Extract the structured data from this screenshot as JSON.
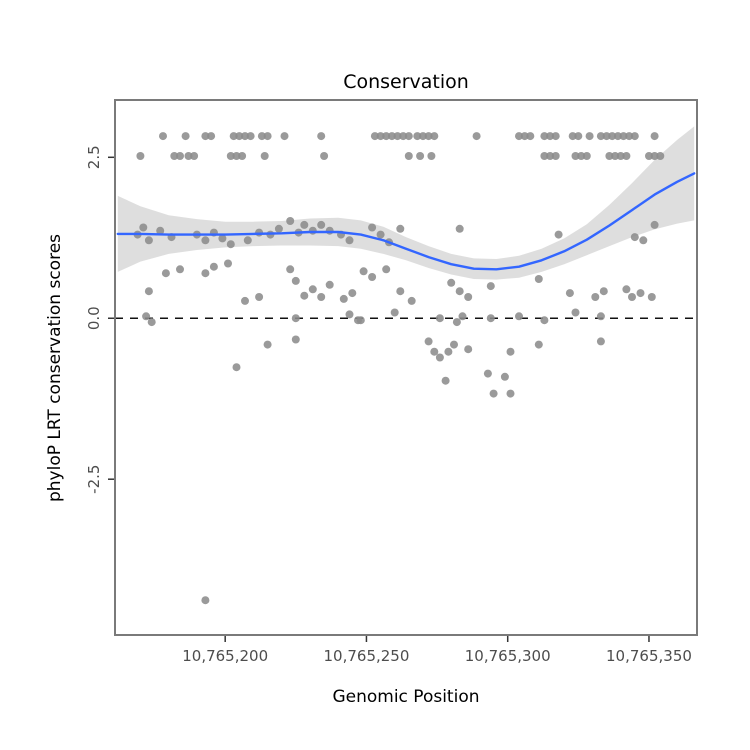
{
  "figure": {
    "background": "#ffffff"
  },
  "chart_data": {
    "type": "scatter",
    "title": "Conservation",
    "xlabel": "Genomic Position",
    "ylabel": "phyloP LRT conservation scores",
    "xlim": [
      10765161,
      10765367
    ],
    "ylim": [
      -4.92,
      3.39
    ],
    "grid": false,
    "legend": "none",
    "xticks": [
      {
        "value": 10765200,
        "label": "10,765,200"
      },
      {
        "value": 10765250,
        "label": "10,765,250"
      },
      {
        "value": 10765300,
        "label": "10,765,300"
      },
      {
        "value": 10765350,
        "label": "10,765,350"
      }
    ],
    "yticks": [
      {
        "value": 2.5,
        "label": "2.5"
      },
      {
        "value": 0.0,
        "label": "0.0"
      },
      {
        "value": -2.5,
        "label": "-2.5"
      }
    ],
    "reference_line_y": 0,
    "colors": {
      "point": "#8c8c8c",
      "smooth_line": "#3366FF",
      "ribbon": "#a8a8a8",
      "panel_border": "#7a7a7a",
      "dashed_line": "#111111",
      "panel_bg": "#ffffff"
    },
    "points": [
      [
        10765178,
        2.83
      ],
      [
        10765186,
        2.83
      ],
      [
        10765193,
        2.83
      ],
      [
        10765195,
        2.83
      ],
      [
        10765203,
        2.83
      ],
      [
        10765205,
        2.83
      ],
      [
        10765207,
        2.83
      ],
      [
        10765209,
        2.83
      ],
      [
        10765213,
        2.83
      ],
      [
        10765215,
        2.83
      ],
      [
        10765221,
        2.83
      ],
      [
        10765234,
        2.83
      ],
      [
        10765253,
        2.83
      ],
      [
        10765255,
        2.83
      ],
      [
        10765257,
        2.83
      ],
      [
        10765259,
        2.83
      ],
      [
        10765261,
        2.83
      ],
      [
        10765263,
        2.83
      ],
      [
        10765265,
        2.83
      ],
      [
        10765268,
        2.83
      ],
      [
        10765270,
        2.83
      ],
      [
        10765272,
        2.83
      ],
      [
        10765274,
        2.83
      ],
      [
        10765289,
        2.83
      ],
      [
        10765304,
        2.83
      ],
      [
        10765306,
        2.83
      ],
      [
        10765308,
        2.83
      ],
      [
        10765313,
        2.83
      ],
      [
        10765315,
        2.83
      ],
      [
        10765317,
        2.83
      ],
      [
        10765323,
        2.83
      ],
      [
        10765325,
        2.83
      ],
      [
        10765329,
        2.83
      ],
      [
        10765333,
        2.83
      ],
      [
        10765335,
        2.83
      ],
      [
        10765337,
        2.83
      ],
      [
        10765339,
        2.83
      ],
      [
        10765341,
        2.83
      ],
      [
        10765343,
        2.83
      ],
      [
        10765345,
        2.83
      ],
      [
        10765352,
        2.83
      ],
      [
        10765170,
        2.52
      ],
      [
        10765182,
        2.52
      ],
      [
        10765184,
        2.52
      ],
      [
        10765187,
        2.52
      ],
      [
        10765189,
        2.52
      ],
      [
        10765202,
        2.52
      ],
      [
        10765204,
        2.52
      ],
      [
        10765206,
        2.52
      ],
      [
        10765214,
        2.52
      ],
      [
        10765235,
        2.52
      ],
      [
        10765265,
        2.52
      ],
      [
        10765269,
        2.52
      ],
      [
        10765273,
        2.52
      ],
      [
        10765313,
        2.52
      ],
      [
        10765315,
        2.52
      ],
      [
        10765317,
        2.52
      ],
      [
        10765324,
        2.52
      ],
      [
        10765326,
        2.52
      ],
      [
        10765328,
        2.52
      ],
      [
        10765336,
        2.52
      ],
      [
        10765338,
        2.52
      ],
      [
        10765340,
        2.52
      ],
      [
        10765342,
        2.52
      ],
      [
        10765350,
        2.52
      ],
      [
        10765352,
        2.52
      ],
      [
        10765354,
        2.52
      ],
      [
        10765169,
        1.3
      ],
      [
        10765171,
        1.41
      ],
      [
        10765173,
        1.21
      ],
      [
        10765177,
        1.36
      ],
      [
        10765181,
        1.26
      ],
      [
        10765190,
        1.3
      ],
      [
        10765193,
        1.21
      ],
      [
        10765196,
        1.33
      ],
      [
        10765199,
        1.24
      ],
      [
        10765202,
        1.15
      ],
      [
        10765208,
        1.21
      ],
      [
        10765212,
        1.33
      ],
      [
        10765216,
        1.3
      ],
      [
        10765219,
        1.39
      ],
      [
        10765223,
        1.51
      ],
      [
        10765226,
        1.33
      ],
      [
        10765228,
        1.45
      ],
      [
        10765231,
        1.36
      ],
      [
        10765234,
        1.45
      ],
      [
        10765237,
        1.36
      ],
      [
        10765241,
        1.3
      ],
      [
        10765244,
        1.21
      ],
      [
        10765252,
        1.41
      ],
      [
        10765255,
        1.3
      ],
      [
        10765258,
        1.18
      ],
      [
        10765262,
        1.39
      ],
      [
        10765283,
        1.39
      ],
      [
        10765318,
        1.3
      ],
      [
        10765345,
        1.26
      ],
      [
        10765348,
        1.21
      ],
      [
        10765352,
        1.45
      ],
      [
        10765173,
        0.42
      ],
      [
        10765179,
        0.7
      ],
      [
        10765184,
        0.76
      ],
      [
        10765193,
        0.7
      ],
      [
        10765196,
        0.8
      ],
      [
        10765201,
        0.85
      ],
      [
        10765207,
        0.27
      ],
      [
        10765212,
        0.33
      ],
      [
        10765223,
        0.76
      ],
      [
        10765225,
        0.58
      ],
      [
        10765228,
        0.35
      ],
      [
        10765231,
        0.45
      ],
      [
        10765234,
        0.33
      ],
      [
        10765237,
        0.52
      ],
      [
        10765242,
        0.3
      ],
      [
        10765245,
        0.39
      ],
      [
        10765249,
        0.73
      ],
      [
        10765252,
        0.64
      ],
      [
        10765257,
        0.76
      ],
      [
        10765262,
        0.42
      ],
      [
        10765266,
        0.27
      ],
      [
        10765280,
        0.55
      ],
      [
        10765283,
        0.42
      ],
      [
        10765286,
        0.33
      ],
      [
        10765294,
        0.5
      ],
      [
        10765311,
        0.61
      ],
      [
        10765322,
        0.39
      ],
      [
        10765331,
        0.33
      ],
      [
        10765334,
        0.42
      ],
      [
        10765342,
        0.45
      ],
      [
        10765344,
        0.33
      ],
      [
        10765347,
        0.39
      ],
      [
        10765351,
        0.33
      ],
      [
        10765172,
        0.03
      ],
      [
        10765174,
        -0.06
      ],
      [
        10765225,
        0.0
      ],
      [
        10765244,
        0.06
      ],
      [
        10765247,
        -0.03
      ],
      [
        10765248,
        -0.03
      ],
      [
        10765260,
        0.09
      ],
      [
        10765276,
        0.0
      ],
      [
        10765282,
        -0.06
      ],
      [
        10765284,
        0.03
      ],
      [
        10765294,
        0.0
      ],
      [
        10765304,
        0.03
      ],
      [
        10765313,
        -0.03
      ],
      [
        10765324,
        0.09
      ],
      [
        10765333,
        0.03
      ],
      [
        10765204,
        -0.76
      ],
      [
        10765215,
        -0.41
      ],
      [
        10765225,
        -0.33
      ],
      [
        10765272,
        -0.36
      ],
      [
        10765274,
        -0.52
      ],
      [
        10765276,
        -0.61
      ],
      [
        10765279,
        -0.52
      ],
      [
        10765281,
        -0.41
      ],
      [
        10765278,
        -0.97
      ],
      [
        10765286,
        -0.48
      ],
      [
        10765293,
        -0.86
      ],
      [
        10765295,
        -1.17
      ],
      [
        10765299,
        -0.91
      ],
      [
        10765301,
        -1.17
      ],
      [
        10765301,
        -0.52
      ],
      [
        10765311,
        -0.41
      ],
      [
        10765333,
        -0.36
      ],
      [
        10765193,
        -4.38
      ]
    ],
    "smooth": {
      "x": [
        10765162,
        10765170,
        10765180,
        10765190,
        10765200,
        10765210,
        10765220,
        10765230,
        10765240,
        10765248,
        10765256,
        10765264,
        10765272,
        10765280,
        10765288,
        10765296,
        10765304,
        10765312,
        10765320,
        10765328,
        10765336,
        10765344,
        10765352,
        10765360,
        10765366
      ],
      "y": [
        1.31,
        1.31,
        1.3,
        1.3,
        1.3,
        1.31,
        1.32,
        1.34,
        1.34,
        1.3,
        1.21,
        1.08,
        0.95,
        0.84,
        0.77,
        0.76,
        0.8,
        0.9,
        1.04,
        1.22,
        1.44,
        1.68,
        1.92,
        2.12,
        2.25
      ],
      "lower": [
        0.72,
        0.88,
        1.0,
        1.06,
        1.1,
        1.12,
        1.13,
        1.13,
        1.12,
        1.08,
        1.0,
        0.9,
        0.78,
        0.68,
        0.61,
        0.6,
        0.63,
        0.72,
        0.84,
        0.98,
        1.12,
        1.26,
        1.38,
        1.47,
        1.52
      ],
      "upper": [
        1.9,
        1.74,
        1.6,
        1.54,
        1.5,
        1.5,
        1.51,
        1.55,
        1.56,
        1.52,
        1.42,
        1.26,
        1.12,
        1.0,
        0.93,
        0.92,
        0.97,
        1.08,
        1.24,
        1.46,
        1.76,
        2.1,
        2.46,
        2.77,
        2.98
      ]
    }
  }
}
